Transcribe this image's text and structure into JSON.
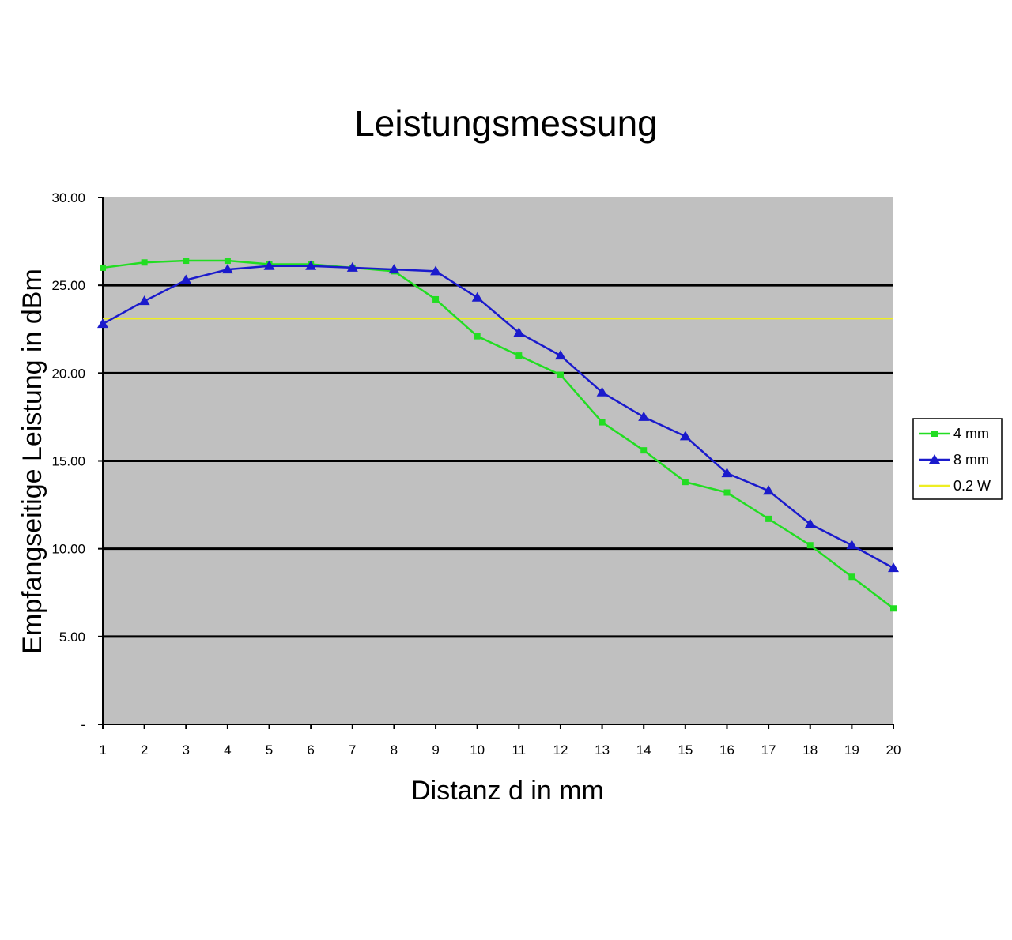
{
  "chart_data": {
    "type": "line",
    "title": "Leistungsmessung",
    "xlabel": "Distanz d in mm",
    "ylabel": "Empfangseitige Leistung in dBm",
    "x": [
      1,
      2,
      3,
      4,
      5,
      6,
      7,
      8,
      9,
      10,
      11,
      12,
      13,
      14,
      15,
      16,
      17,
      18,
      19,
      20
    ],
    "x_tick_labels": [
      "1",
      "2",
      "3",
      "4",
      "5",
      "6",
      "7",
      "8",
      "9",
      "10",
      "11",
      "12",
      "13",
      "14",
      "15",
      "16",
      "17",
      "18",
      "19",
      "20"
    ],
    "ylim": [
      0,
      30
    ],
    "y_ticks": [
      0,
      5,
      10,
      15,
      20,
      25,
      30
    ],
    "y_tick_labels": [
      "-",
      "5.00",
      "10.00",
      "15.00",
      "20.00",
      "25.00",
      "30.00"
    ],
    "grid": true,
    "legend_position": "right",
    "plot_background": "#c0c0c0",
    "series": [
      {
        "name": "4 mm",
        "color": "#22dd22",
        "marker": "square",
        "values": [
          26.0,
          26.3,
          26.4,
          26.4,
          26.2,
          26.2,
          26.0,
          25.8,
          24.2,
          22.1,
          21.0,
          19.9,
          17.2,
          15.6,
          13.8,
          13.2,
          11.7,
          10.2,
          8.4,
          6.6
        ]
      },
      {
        "name": "8 mm",
        "color": "#1a1acc",
        "marker": "triangle",
        "values": [
          22.8,
          24.1,
          25.3,
          25.9,
          26.1,
          26.1,
          26.0,
          25.9,
          25.8,
          24.3,
          22.3,
          21.0,
          18.9,
          17.5,
          16.4,
          14.3,
          13.3,
          11.4,
          10.2,
          8.9
        ]
      },
      {
        "name": "0.2 W",
        "color": "#eeee22",
        "marker": "none",
        "values": [
          23.1,
          23.1,
          23.1,
          23.1,
          23.1,
          23.1,
          23.1,
          23.1,
          23.1,
          23.1,
          23.1,
          23.1,
          23.1,
          23.1,
          23.1,
          23.1,
          23.1,
          23.1,
          23.1,
          23.1
        ]
      }
    ]
  }
}
